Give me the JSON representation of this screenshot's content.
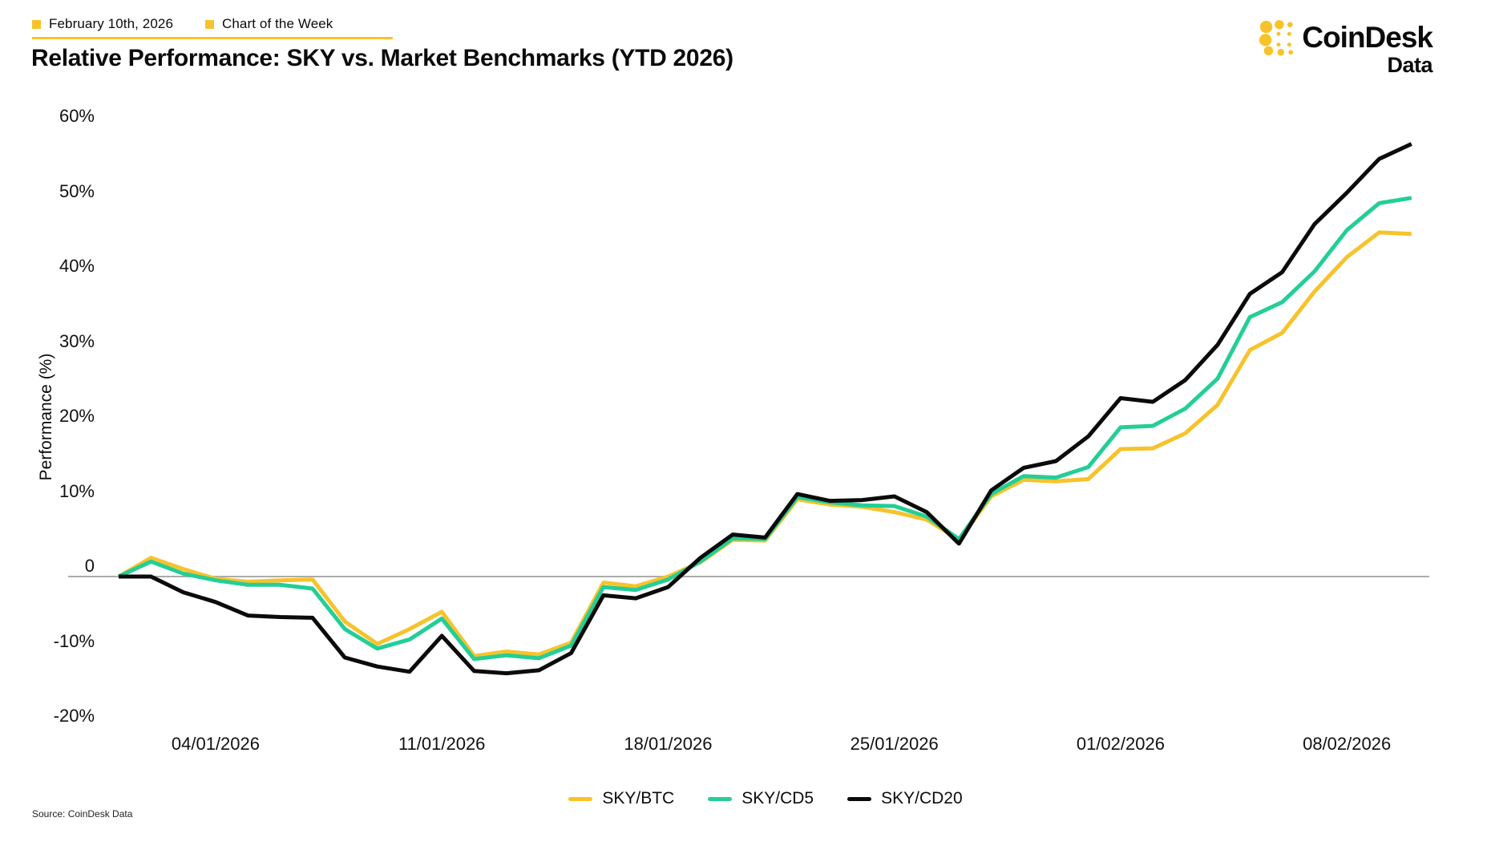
{
  "header": {
    "date_label": "February 10th, 2026",
    "series_label": "Chart of the Week"
  },
  "title": "Relative Performance: SKY vs. Market Benchmarks (YTD 2026)",
  "logo": {
    "name": "CoinDesk",
    "sub": "Data"
  },
  "source": "Source: CoinDesk Data",
  "colors": {
    "accent_yellow": "#F7C32B",
    "green": "#23CE97",
    "black": "#0B0B0C",
    "zero_line": "#ABABAB"
  },
  "chart_data": {
    "type": "line",
    "title": "Relative Performance: SKY vs. Market Benchmarks (YTD 2026)",
    "xlabel": "",
    "ylabel": "Performance (%)",
    "ylim": [
      -20,
      60
    ],
    "grid": "zero-line-only",
    "legend_position": "bottom",
    "yticks": [
      {
        "label": "60%",
        "value": 60
      },
      {
        "label": "50%",
        "value": 50
      },
      {
        "label": "40%",
        "value": 40
      },
      {
        "label": "30%",
        "value": 30
      },
      {
        "label": "20%",
        "value": 20
      },
      {
        "label": "10%",
        "value": 10
      },
      {
        "label": "0",
        "value": 0
      },
      {
        "label": "-10%",
        "value": -10
      },
      {
        "label": "-20%",
        "value": -20
      }
    ],
    "xticks": [
      {
        "label": "04/01/2026",
        "index": 3
      },
      {
        "label": "11/01/2026",
        "index": 10
      },
      {
        "label": "18/01/2026",
        "index": 17
      },
      {
        "label": "25/01/2026",
        "index": 24
      },
      {
        "label": "01/02/2026",
        "index": 31
      },
      {
        "label": "08/02/2026",
        "index": 38
      }
    ],
    "x": [
      "01/01/2026",
      "02/01/2026",
      "03/01/2026",
      "04/01/2026",
      "05/01/2026",
      "06/01/2026",
      "07/01/2026",
      "08/01/2026",
      "09/01/2026",
      "10/01/2026",
      "11/01/2026",
      "12/01/2026",
      "13/01/2026",
      "14/01/2026",
      "15/01/2026",
      "16/01/2026",
      "17/01/2026",
      "18/01/2026",
      "19/01/2026",
      "20/01/2026",
      "21/01/2026",
      "22/01/2026",
      "23/01/2026",
      "24/01/2026",
      "25/01/2026",
      "26/01/2026",
      "27/01/2026",
      "28/01/2026",
      "29/01/2026",
      "30/01/2026",
      "31/01/2026",
      "01/02/2026",
      "02/02/2026",
      "03/02/2026",
      "04/02/2026",
      "05/02/2026",
      "06/02/2026",
      "07/02/2026",
      "08/02/2026",
      "09/02/2026",
      "10/02/2026"
    ],
    "series": [
      {
        "name": "SKY/BTC",
        "color": "#F7C32B",
        "values": [
          0,
          2.5,
          1.0,
          -0.3,
          -0.7,
          -0.5,
          -0.4,
          -6.0,
          -9.0,
          -7.0,
          -4.7,
          -10.6,
          -10.0,
          -10.4,
          -8.8,
          -0.8,
          -1.3,
          0.0,
          1.9,
          4.9,
          4.8,
          10.3,
          9.6,
          9.3,
          8.6,
          7.6,
          4.9,
          10.7,
          12.9,
          12.7,
          13.0,
          17.0,
          17.1,
          19.1,
          22.9,
          30.2,
          32.5,
          38.0,
          42.6,
          45.9,
          45.7
        ]
      },
      {
        "name": "SKY/CD5",
        "color": "#23CE97",
        "values": [
          0,
          2.0,
          0.4,
          -0.5,
          -1.1,
          -1.1,
          -1.6,
          -7.0,
          -9.6,
          -8.4,
          -5.6,
          -11.0,
          -10.5,
          -10.9,
          -9.2,
          -1.4,
          -1.8,
          -0.4,
          2.0,
          5.1,
          5.0,
          10.6,
          9.9,
          9.5,
          9.4,
          8.0,
          5.0,
          11.0,
          13.4,
          13.2,
          14.6,
          19.9,
          20.1,
          22.4,
          26.4,
          34.6,
          36.6,
          40.7,
          46.2,
          49.8,
          50.5
        ]
      },
      {
        "name": "SKY/CD20",
        "color": "#0B0B0C",
        "values": [
          0,
          0,
          -2.1,
          -3.4,
          -5.2,
          -5.4,
          -5.5,
          -10.8,
          -12.0,
          -12.7,
          -7.9,
          -12.6,
          -12.9,
          -12.5,
          -10.2,
          -2.5,
          -2.9,
          -1.4,
          2.5,
          5.6,
          5.2,
          11.0,
          10.1,
          10.2,
          10.7,
          8.6,
          4.4,
          11.5,
          14.5,
          15.4,
          18.7,
          23.8,
          23.3,
          26.2,
          30.9,
          37.7,
          40.6,
          47.0,
          51.2,
          55.7,
          57.7
        ]
      }
    ]
  }
}
